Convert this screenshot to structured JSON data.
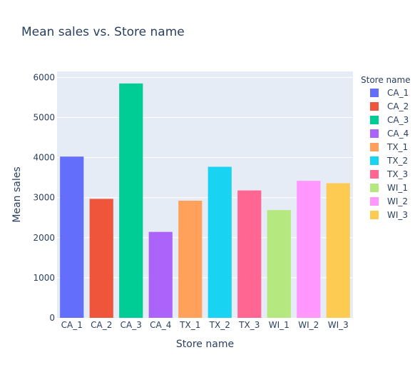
{
  "chart_data": {
    "type": "bar",
    "title": "Mean sales vs. Store name",
    "xlabel": "Store name",
    "ylabel": "Mean sales",
    "ylim": [
      0,
      6150
    ],
    "yticks": [
      0,
      1000,
      2000,
      3000,
      4000,
      5000,
      6000
    ],
    "grid": true,
    "legend_title": "Store name",
    "legend_position": "right",
    "categories": [
      "CA_1",
      "CA_2",
      "CA_3",
      "CA_4",
      "TX_1",
      "TX_2",
      "TX_3",
      "WI_1",
      "WI_2",
      "WI_3"
    ],
    "values": [
      4025,
      2970,
      5850,
      2145,
      2925,
      3770,
      3180,
      2690,
      3420,
      3360
    ],
    "colors": [
      "#636efa",
      "#EF553B",
      "#00cc96",
      "#ab63fa",
      "#FFA15A",
      "#19d3f3",
      "#FF6692",
      "#B6E880",
      "#FF97FF",
      "#FECB52"
    ]
  }
}
